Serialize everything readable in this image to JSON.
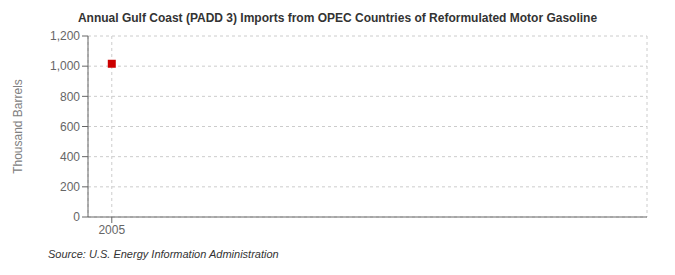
{
  "chart_data": {
    "type": "scatter",
    "title": "Annual Gulf Coast (PADD 3) Imports from OPEC Countries of Reformulated Motor Gasoline",
    "ylabel": "Thousand Barrels",
    "annotations": [
      "Source: U.S. Energy Information Administration"
    ],
    "x": [
      2005
    ],
    "values": [
      1016
    ],
    "color": "#cc0000",
    "marker": "square",
    "xlim": [
      2004.6,
      2014.0
    ],
    "xticks": [
      2005
    ],
    "ylim": [
      0,
      1200
    ],
    "yticks": [
      0,
      200,
      400,
      600,
      800,
      {
        "value": 1000,
        "label": "1,000"
      },
      {
        "value": 1200,
        "label": "1,200"
      }
    ],
    "grid": true
  }
}
